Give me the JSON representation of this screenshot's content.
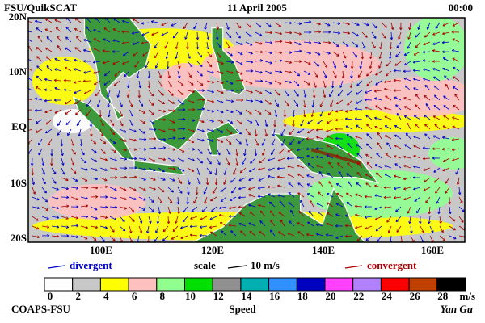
{
  "header": {
    "left": "FSU/QuikSCAT",
    "center": "11 April 2005",
    "right": "00:00"
  },
  "axes": {
    "lat_labels": [
      "20N",
      "10N",
      "EQ",
      "10S",
      "20S"
    ],
    "lon_labels": [
      "100E",
      "120E",
      "140E",
      "160E"
    ]
  },
  "legend": {
    "divergent": "divergent",
    "scale": "scale",
    "scale_value": "10 m/s",
    "convergent": "convergent",
    "divergent_color": "#0000cc",
    "convergent_color": "#aa0000"
  },
  "colorbar": {
    "labels": [
      0,
      2,
      4,
      6,
      8,
      10,
      12,
      14,
      16,
      18,
      20,
      22,
      24,
      26,
      28
    ],
    "unit": "m/s",
    "title": "Speed",
    "colors": [
      "#ffffff",
      "#c8c8c8",
      "#ffff00",
      "#ffc0c0",
      "#90ff90",
      "#00e000",
      "#909090",
      "#00b0b0",
      "#3090ff",
      "#0000c0",
      "#ff40ff",
      "#b080ff",
      "#ff0000",
      "#c04000",
      "#000000"
    ]
  },
  "footer": {
    "left": "COAPS-FSU",
    "right": "Yan Gu"
  }
}
